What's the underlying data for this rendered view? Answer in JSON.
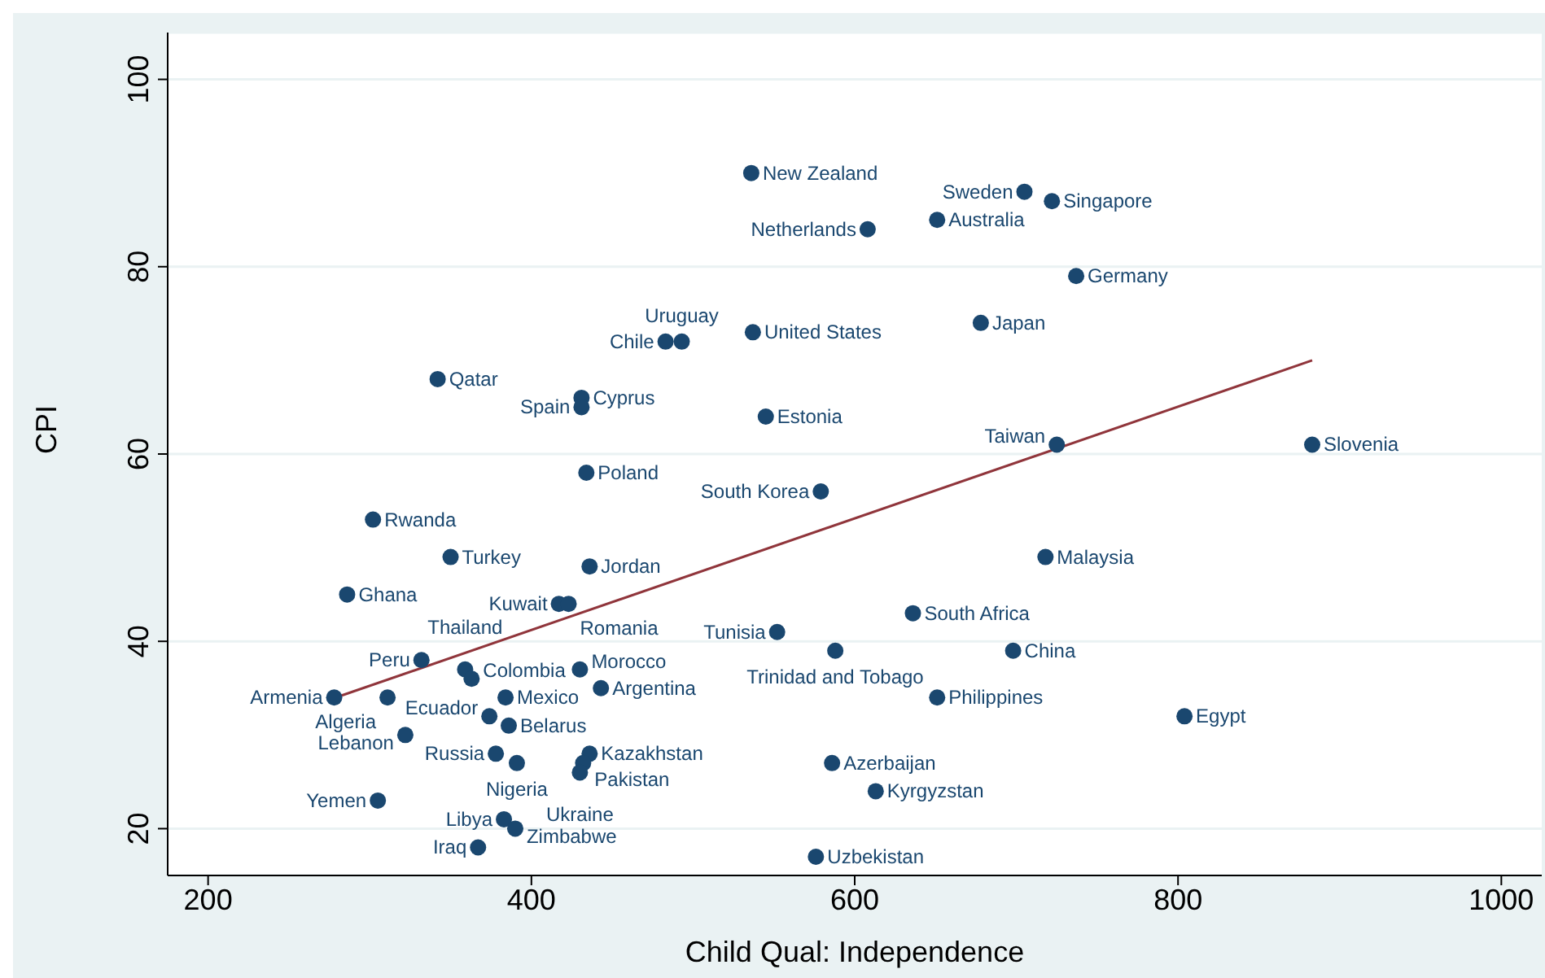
{
  "chart_data": {
    "type": "scatter",
    "xlabel": "Child Qual: Independence",
    "ylabel": "CPI",
    "xlim": [
      175,
      1025
    ],
    "xticks": [
      200,
      400,
      600,
      800,
      1000
    ],
    "ylim": [
      15,
      105
    ],
    "yticks": [
      20,
      40,
      60,
      80,
      100
    ],
    "grid": "y",
    "legend": false,
    "marker": "circle",
    "series": [
      {
        "type": "scatter",
        "color": "#1a476f",
        "x": [
          536,
          705,
          722,
          651,
          608,
          737,
          678,
          537,
          483,
          493,
          342,
          431,
          431,
          545,
          725,
          883,
          434,
          579,
          302,
          350,
          436,
          718,
          286,
          417,
          423,
          636,
          552,
          588,
          698,
          332,
          359,
          363,
          430,
          443,
          278,
          311,
          384,
          651,
          804,
          374,
          386,
          322,
          378,
          436,
          391,
          432,
          430,
          586,
          613,
          305,
          383,
          390,
          367,
          576
        ],
        "values": [
          90,
          88,
          87,
          85,
          84,
          79,
          74,
          73,
          72,
          72,
          68,
          66,
          65,
          64,
          61,
          61,
          58,
          56,
          53,
          49,
          48,
          49,
          45,
          44,
          44,
          43,
          41,
          39,
          39,
          38,
          37,
          36,
          37,
          35,
          34,
          34,
          34,
          34,
          32,
          32,
          31,
          30,
          28,
          28,
          27,
          27,
          26,
          27,
          24,
          23,
          21,
          20,
          18,
          17
        ]
      },
      {
        "type": "line",
        "color": "#90353b",
        "x": [
          279,
          883
        ],
        "values": [
          34,
          70
        ],
        "marker": "none"
      }
    ],
    "annotations": [
      {
        "text": "New Zealand",
        "x": 536,
        "y": 90
      },
      {
        "text": "Sweden",
        "x": 705,
        "y": 88
      },
      {
        "text": "Singapore",
        "x": 722,
        "y": 87
      },
      {
        "text": "Australia",
        "x": 651,
        "y": 85
      },
      {
        "text": "Netherlands",
        "x": 608,
        "y": 84
      },
      {
        "text": "Germany",
        "x": 737,
        "y": 79
      },
      {
        "text": "Japan",
        "x": 678,
        "y": 74
      },
      {
        "text": "United States",
        "x": 537,
        "y": 73
      },
      {
        "text": "Chile",
        "x": 483,
        "y": 72
      },
      {
        "text": "Uruguay",
        "x": 493,
        "y": 72
      },
      {
        "text": "Qatar",
        "x": 342,
        "y": 68
      },
      {
        "text": "Cyprus",
        "x": 431,
        "y": 66
      },
      {
        "text": "Spain",
        "x": 431,
        "y": 65
      },
      {
        "text": "Estonia",
        "x": 545,
        "y": 64
      },
      {
        "text": "Taiwan",
        "x": 725,
        "y": 61
      },
      {
        "text": "Slovenia",
        "x": 883,
        "y": 61
      },
      {
        "text": "Poland",
        "x": 434,
        "y": 58
      },
      {
        "text": "South Korea",
        "x": 579,
        "y": 56
      },
      {
        "text": "Rwanda",
        "x": 302,
        "y": 53
      },
      {
        "text": "Turkey",
        "x": 350,
        "y": 49
      },
      {
        "text": "Jordan",
        "x": 436,
        "y": 48
      },
      {
        "text": "Malaysia",
        "x": 718,
        "y": 49
      },
      {
        "text": "Ghana",
        "x": 286,
        "y": 45
      },
      {
        "text": "Kuwait",
        "x": 417,
        "y": 44
      },
      {
        "text": "Romania",
        "x": 423,
        "y": 44
      },
      {
        "text": "South Africa",
        "x": 636,
        "y": 43
      },
      {
        "text": "Tunisia",
        "x": 552,
        "y": 41
      },
      {
        "text": "Trinidad and Tobago",
        "x": 588,
        "y": 39
      },
      {
        "text": "China",
        "x": 698,
        "y": 39
      },
      {
        "text": "Peru",
        "x": 332,
        "y": 38
      },
      {
        "text": "Thailand",
        "x": 359,
        "y": 37
      },
      {
        "text": "Colombia",
        "x": 363,
        "y": 36
      },
      {
        "text": "Morocco",
        "x": 430,
        "y": 37
      },
      {
        "text": "Argentina",
        "x": 443,
        "y": 35
      },
      {
        "text": "Armenia",
        "x": 278,
        "y": 34
      },
      {
        "text": "Algeria",
        "x": 311,
        "y": 34
      },
      {
        "text": "Mexico",
        "x": 384,
        "y": 34
      },
      {
        "text": "Philippines",
        "x": 651,
        "y": 34
      },
      {
        "text": "Egypt",
        "x": 804,
        "y": 32
      },
      {
        "text": "Ecuador",
        "x": 374,
        "y": 32
      },
      {
        "text": "Belarus",
        "x": 386,
        "y": 31
      },
      {
        "text": "Lebanon",
        "x": 322,
        "y": 30
      },
      {
        "text": "Russia",
        "x": 378,
        "y": 28
      },
      {
        "text": "Kazakhstan",
        "x": 436,
        "y": 28
      },
      {
        "text": "Nigeria",
        "x": 391,
        "y": 27
      },
      {
        "text": "Pakistan",
        "x": 432,
        "y": 27
      },
      {
        "text": "Ukraine",
        "x": 430,
        "y": 26
      },
      {
        "text": "Azerbaijan",
        "x": 586,
        "y": 27
      },
      {
        "text": "Kyrgyzstan",
        "x": 613,
        "y": 24
      },
      {
        "text": "Yemen",
        "x": 305,
        "y": 23
      },
      {
        "text": "Libya",
        "x": 383,
        "y": 21
      },
      {
        "text": "Zimbabwe",
        "x": 390,
        "y": 20
      },
      {
        "text": "Iraq",
        "x": 367,
        "y": 18
      },
      {
        "text": "Uzbekistan",
        "x": 576,
        "y": 17
      }
    ]
  }
}
